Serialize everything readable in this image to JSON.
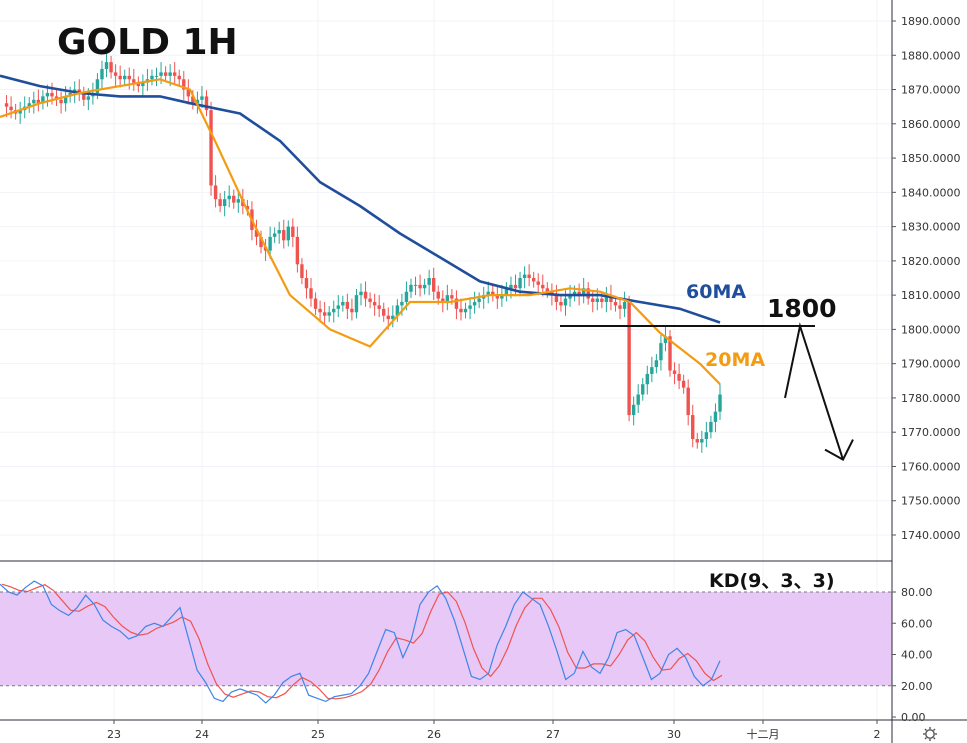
{
  "chart_data": {
    "title": "GOLD 1H",
    "type": "candlestick",
    "price_axis": {
      "ticks": [
        "1890.0000",
        "1880.0000",
        "1870.0000",
        "1860.0000",
        "1850.0000",
        "1840.0000",
        "1830.0000",
        "1820.0000",
        "1810.0000",
        "1800.0000",
        "1790.0000",
        "1780.0000",
        "1770.0000",
        "1760.0000",
        "1750.0000",
        "1740.0000"
      ],
      "tick_values": [
        1890,
        1880,
        1870,
        1860,
        1850,
        1840,
        1830,
        1820,
        1810,
        1800,
        1790,
        1780,
        1770,
        1760,
        1750,
        1740
      ],
      "range": [
        1732,
        1893
      ]
    },
    "time_axis": {
      "labels": [
        "23",
        "24",
        "25",
        "26",
        "27",
        "30",
        "十二月",
        "2"
      ]
    },
    "price_series": [
      1866,
      1865,
      1864,
      1863,
      1864,
      1865,
      1866,
      1867,
      1866,
      1868,
      1869,
      1868,
      1867,
      1866,
      1868,
      1869,
      1870,
      1869,
      1867,
      1868,
      1869,
      1873,
      1876,
      1878,
      1875,
      1874,
      1873,
      1874,
      1873,
      1872,
      1871,
      1872,
      1873,
      1874,
      1874,
      1875,
      1874,
      1875,
      1874,
      1873,
      1870,
      1868,
      1866,
      1867,
      1868,
      1864,
      1842,
      1838,
      1836,
      1838,
      1839,
      1837,
      1838,
      1836,
      1835,
      1829,
      1827,
      1824,
      1823,
      1827,
      1828,
      1829,
      1826,
      1830,
      1827,
      1819,
      1815,
      1812,
      1809,
      1806,
      1805,
      1804,
      1805,
      1806,
      1807,
      1808,
      1806,
      1805,
      1810,
      1811,
      1809,
      1808,
      1807,
      1806,
      1804,
      1803,
      1804,
      1807,
      1808,
      1811,
      1813,
      1813,
      1812,
      1813,
      1815,
      1811,
      1809,
      1808,
      1810,
      1809,
      1806,
      1805,
      1806,
      1807,
      1808,
      1809,
      1810,
      1811,
      1810,
      1809,
      1810,
      1812,
      1813,
      1812,
      1815,
      1816,
      1815,
      1814,
      1813,
      1812,
      1811,
      1810,
      1808,
      1807,
      1809,
      1810,
      1811,
      1810,
      1812,
      1809,
      1808,
      1809,
      1808,
      1810,
      1808,
      1807,
      1806,
      1808,
      1775,
      1778,
      1781,
      1784,
      1787,
      1789,
      1791,
      1796,
      1798,
      1788,
      1787,
      1785,
      1783,
      1775,
      1768,
      1767,
      1768,
      1770,
      1773,
      1776,
      1781
    ],
    "ma20": [
      [
        0,
        1862
      ],
      [
        40,
        1866
      ],
      [
        80,
        1869
      ],
      [
        120,
        1871
      ],
      [
        160,
        1873
      ],
      [
        190,
        1870
      ],
      [
        215,
        1855
      ],
      [
        250,
        1833
      ],
      [
        290,
        1810
      ],
      [
        330,
        1800
      ],
      [
        370,
        1795
      ],
      [
        410,
        1808
      ],
      [
        450,
        1808
      ],
      [
        490,
        1810
      ],
      [
        530,
        1810
      ],
      [
        570,
        1812
      ],
      [
        600,
        1811
      ],
      [
        630,
        1808
      ],
      [
        660,
        1799
      ],
      [
        700,
        1790
      ],
      [
        720,
        1784
      ]
    ],
    "ma60": [
      [
        0,
        1874
      ],
      [
        40,
        1871
      ],
      [
        80,
        1869
      ],
      [
        120,
        1868
      ],
      [
        160,
        1868
      ],
      [
        190,
        1866
      ],
      [
        240,
        1863
      ],
      [
        280,
        1855
      ],
      [
        320,
        1843
      ],
      [
        360,
        1836
      ],
      [
        400,
        1828
      ],
      [
        440,
        1821
      ],
      [
        480,
        1814
      ],
      [
        520,
        1811
      ],
      [
        560,
        1810
      ],
      [
        600,
        1810
      ],
      [
        640,
        1808
      ],
      [
        680,
        1806
      ],
      [
        720,
        1802
      ]
    ],
    "level_line": {
      "value": 1801,
      "x_start": 560,
      "x_end": 815
    },
    "projection_arrow": [
      [
        785,
        1780
      ],
      [
        800,
        1801
      ],
      [
        843,
        1762
      ]
    ],
    "annotations": {
      "ma60_label": "60MA",
      "ma20_label": "20MA",
      "level_label": "1800"
    },
    "indicator": {
      "title": "KD(9、3、3)",
      "ticks": [
        "80.00",
        "60.00",
        "40.00",
        "20.00",
        "0.00"
      ],
      "tick_values": [
        80,
        60,
        40,
        20,
        0
      ],
      "upper_band": 80,
      "lower_band": 20,
      "k": [
        85,
        80,
        78,
        83,
        87,
        84,
        72,
        68,
        65,
        70,
        78,
        72,
        62,
        58,
        55,
        50,
        52,
        58,
        60,
        58,
        64,
        70,
        50,
        30,
        22,
        12,
        10,
        16,
        18,
        16,
        14,
        9,
        14,
        22,
        26,
        28,
        14,
        12,
        10,
        13,
        14,
        15,
        20,
        28,
        42,
        56,
        54,
        38,
        50,
        72,
        80,
        84,
        76,
        62,
        44,
        26,
        24,
        28,
        46,
        58,
        72,
        80,
        76,
        72,
        58,
        42,
        24,
        28,
        42,
        32,
        28,
        38,
        54,
        56,
        52,
        38,
        24,
        28,
        40,
        44,
        38,
        26,
        20,
        24,
        36
      ]
    },
    "colors": {
      "up_candle": "#26a69a",
      "down_candle": "#ef5350",
      "ma20": "#f39c12",
      "ma60": "#1f4e9c",
      "k_line": "#3d85e8",
      "d_line": "#ef5350",
      "band_fill": "#e8c8f6"
    }
  }
}
